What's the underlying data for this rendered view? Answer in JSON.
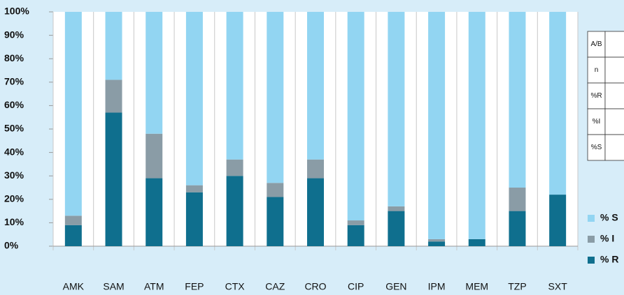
{
  "chart_data": {
    "type": "bar",
    "stacked": true,
    "categories": [
      "AMK",
      "SAM",
      "ATM",
      "FEP",
      "CTX",
      "CAZ",
      "CRO",
      "CIP",
      "GEN",
      "IPM",
      "MEM",
      "TZP",
      "SXT"
    ],
    "series": [
      {
        "name": "% R",
        "color": "#0f6f8e",
        "values": [
          9,
          57,
          29,
          23,
          30,
          21,
          29,
          9,
          15,
          2,
          3,
          15,
          22
        ]
      },
      {
        "name": "% I",
        "color": "#8a9ca6",
        "values": [
          4,
          14,
          19,
          3,
          7,
          6,
          8,
          2,
          2,
          1,
          0,
          10,
          0
        ]
      },
      {
        "name": "% S",
        "color": "#92d5f2",
        "values": [
          87,
          29,
          52,
          74,
          63,
          73,
          63,
          89,
          83,
          97,
          97,
          75,
          78
        ]
      }
    ],
    "ylim": [
      0,
      100
    ],
    "yticks": [
      {
        "value": 0,
        "label": "0%"
      },
      {
        "value": 10,
        "label": "10%"
      },
      {
        "value": 20,
        "label": "20%"
      },
      {
        "value": 30,
        "label": "30%"
      },
      {
        "value": 40,
        "label": "40%"
      },
      {
        "value": 50,
        "label": "50%"
      },
      {
        "value": 60,
        "label": "60%"
      },
      {
        "value": 70,
        "label": "70%"
      },
      {
        "value": 80,
        "label": "80%"
      },
      {
        "value": 90,
        "label": "90%"
      },
      {
        "value": 100,
        "label": "100%"
      }
    ],
    "grid": true,
    "legend": "right",
    "table_rows": [
      "A/B",
      "n",
      "%R",
      "%I",
      "%S"
    ]
  }
}
